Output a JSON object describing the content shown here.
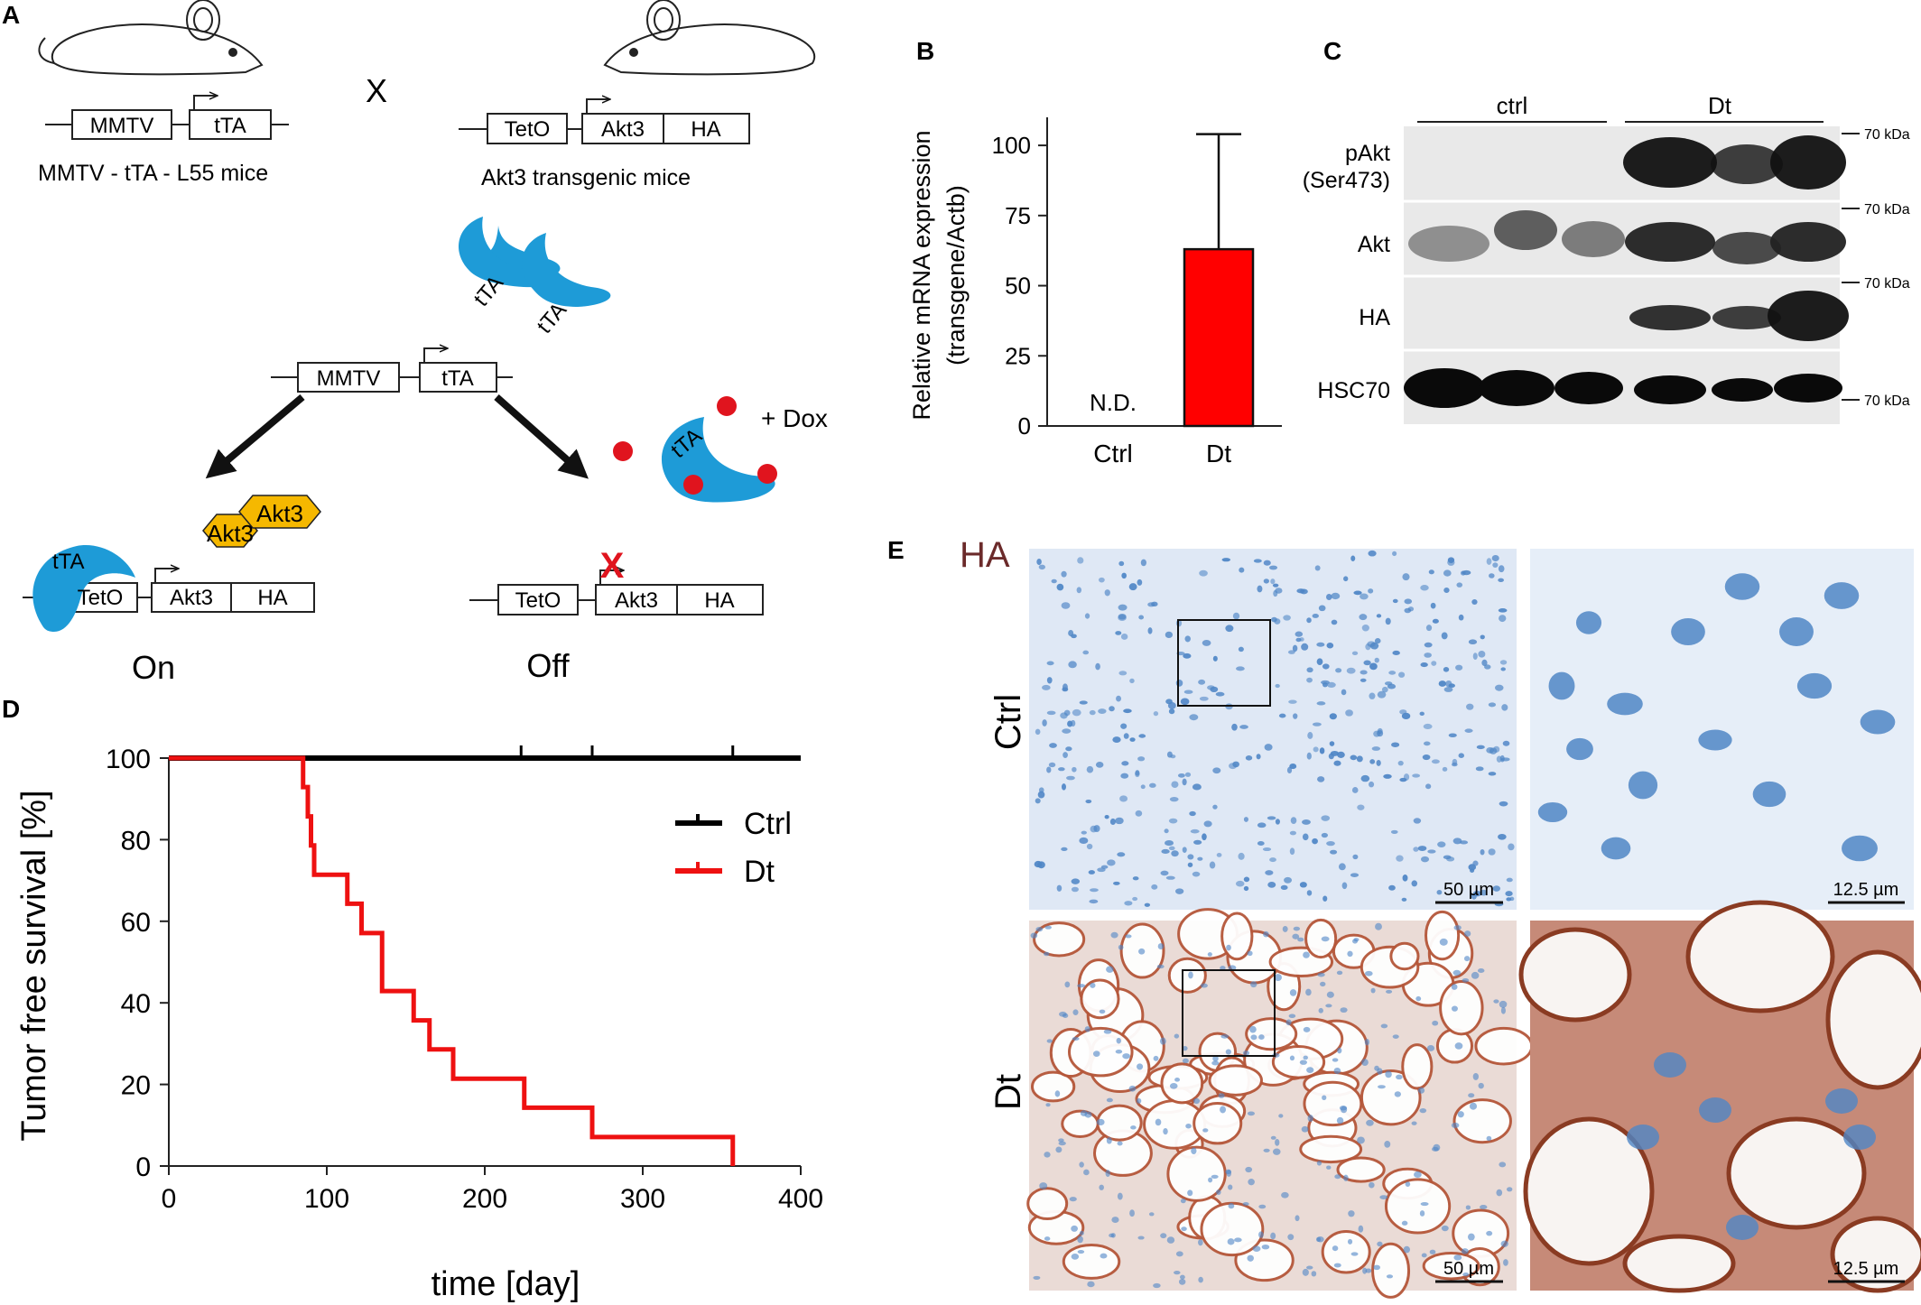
{
  "panel_letters": {
    "a": "A",
    "b": "B",
    "c": "C",
    "d": "D",
    "e": "E"
  },
  "panel_a": {
    "mmtv": "MMTV",
    "tta": "tTA",
    "teto": "TetO",
    "akt3": "Akt3",
    "ha": "HA",
    "cross": "X",
    "mouse1_caption": "MMTV - tTA - L55 mice",
    "mouse2_caption": "Akt3 transgenic mice",
    "protein_tta": "tTA",
    "protein_akt3": "Akt3",
    "dox": "+ Dox",
    "on": "On",
    "off": "Off",
    "off_mark": "X",
    "colors": {
      "tta": "#1e9bd7",
      "akt3": "#f5b800",
      "dox": "#e0141e",
      "arrow": "#111111"
    }
  },
  "panel_b": {
    "ylabel_line1": "Relative mRNA expression",
    "ylabel_line2": "(transgene/Actb)",
    "nd_label": "N.D.",
    "chart_data": {
      "type": "bar",
      "categories": [
        "Ctrl",
        "Dt"
      ],
      "values": [
        0,
        63
      ],
      "errors": [
        0,
        41
      ],
      "annotations": {
        "Ctrl": "N.D."
      },
      "yticks": [
        "0",
        "25",
        "50",
        "75",
        "100"
      ],
      "ylim": [
        0,
        110
      ],
      "colors": [
        "#ffffff",
        "#ff0000"
      ]
    }
  },
  "panel_c": {
    "group_ctrl": "ctrl",
    "group_dt": "Dt",
    "rows": [
      "pAkt",
      "(Ser473)",
      "Akt",
      "HA",
      "HSC70"
    ],
    "marker": "70 kDa"
  },
  "panel_d": {
    "ylabel": "Tumor free survival [%]",
    "xlabel": "time [day]",
    "chart_data": {
      "type": "line",
      "xlim": [
        0,
        400
      ],
      "ylim": [
        0,
        100
      ],
      "xticks": [
        "0",
        "100",
        "200",
        "300",
        "400"
      ],
      "yticks": [
        "0",
        "20",
        "40",
        "60",
        "80",
        "100"
      ],
      "series": [
        {
          "name": "Ctrl",
          "color": "#000000",
          "steps": [
            [
              0,
              100
            ],
            [
              400,
              100
            ]
          ],
          "censored": [
            223,
            268,
            357
          ]
        },
        {
          "name": "Dt",
          "color": "#ee1111",
          "steps": [
            [
              0,
              100
            ],
            [
              85,
              100
            ],
            [
              85,
              92.9
            ],
            [
              88,
              92.9
            ],
            [
              88,
              85.7
            ],
            [
              90,
              85.7
            ],
            [
              90,
              78.6
            ],
            [
              92,
              78.6
            ],
            [
              92,
              71.4
            ],
            [
              113,
              71.4
            ],
            [
              113,
              64.3
            ],
            [
              122,
              64.3
            ],
            [
              122,
              57.1
            ],
            [
              135,
              57.1
            ],
            [
              135,
              42.9
            ],
            [
              155,
              42.9
            ],
            [
              155,
              35.7
            ],
            [
              165,
              35.7
            ],
            [
              165,
              28.6
            ],
            [
              180,
              28.6
            ],
            [
              180,
              21.4
            ],
            [
              225,
              21.4
            ],
            [
              225,
              14.3
            ],
            [
              268,
              14.3
            ],
            [
              268,
              7.1
            ],
            [
              357,
              7.1
            ],
            [
              357,
              0
            ]
          ],
          "censored": [
            268
          ]
        }
      ]
    }
  },
  "panel_e": {
    "stain": "HA",
    "row_ctrl": "Ctrl",
    "row_dt": "Dt",
    "scale_50": "50 µm",
    "scale_12": "12.5 µm",
    "colors": {
      "stain": "#6b2a2a",
      "nuclei": "#4f86c6",
      "brown": "#b5573a"
    }
  }
}
